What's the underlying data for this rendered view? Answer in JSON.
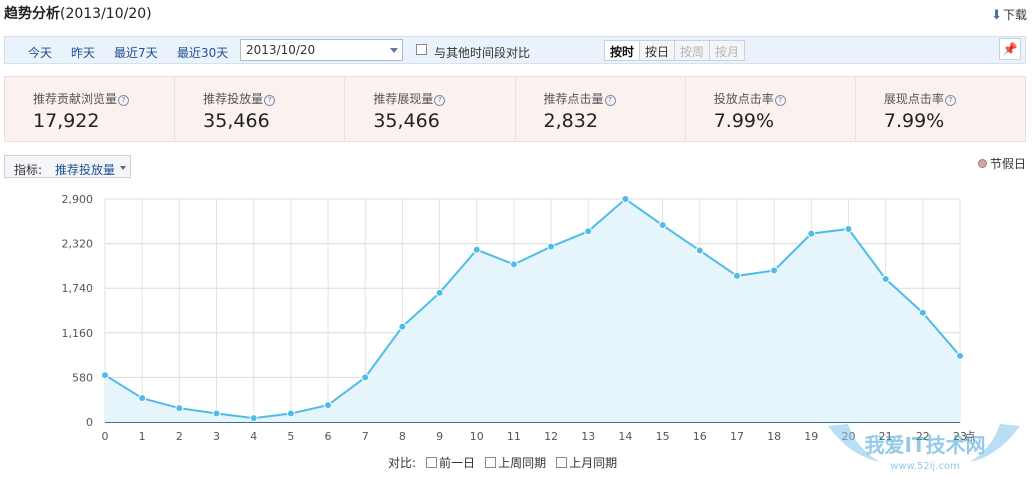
{
  "header": {
    "title": "趋势分析",
    "date_suffix": "(2013/10/20)",
    "download_label": "下载"
  },
  "toolbar": {
    "quick_ranges": [
      "今天",
      "昨天",
      "最近7天",
      "最近30天"
    ],
    "date_value": "2013/10/20",
    "compare_label": "与其他时间段对比",
    "granularity": [
      {
        "label": "按时",
        "state": "active"
      },
      {
        "label": "按日",
        "state": "normal"
      },
      {
        "label": "按周",
        "state": "disabled"
      },
      {
        "label": "按月",
        "state": "disabled"
      }
    ]
  },
  "metrics": [
    {
      "label": "推荐贡献浏览量",
      "value": "17,922"
    },
    {
      "label": "推荐投放量",
      "value": "35,466"
    },
    {
      "label": "推荐展现量",
      "value": "35,466"
    },
    {
      "label": "推荐点击量",
      "value": "2,832"
    },
    {
      "label": "投放点击率",
      "value": "7.99%"
    },
    {
      "label": "展现点击率",
      "value": "7.99%"
    }
  ],
  "indicator": {
    "label": "指标:",
    "value": "推荐投放量"
  },
  "legend": {
    "holiday_label": "节假日"
  },
  "chart_data": {
    "type": "area",
    "x": [
      0,
      1,
      2,
      3,
      4,
      5,
      6,
      7,
      8,
      9,
      10,
      11,
      12,
      13,
      14,
      15,
      16,
      17,
      18,
      19,
      20,
      21,
      22,
      23
    ],
    "x_unit_label": "点",
    "y_ticks": [
      "0",
      "580",
      "1,160",
      "1,740",
      "2,320",
      "2,900"
    ],
    "ylim": [
      0,
      2900
    ],
    "series": [
      {
        "values": [
          610,
          310,
          180,
          110,
          50,
          110,
          220,
          580,
          1240,
          1680,
          2240,
          2050,
          2280,
          2480,
          2900,
          2560,
          2230,
          1900,
          1970,
          2450,
          2510,
          1860,
          1420,
          860
        ]
      }
    ],
    "line_color": "#4dbde8",
    "fill_color": "#e6f4fb",
    "grid": true
  },
  "compare": {
    "label": "对比:",
    "options": [
      "前一日",
      "上周同期",
      "上月同期"
    ]
  },
  "watermark": {
    "text": "我爱IT技术网",
    "url": "www.52ij.com"
  }
}
